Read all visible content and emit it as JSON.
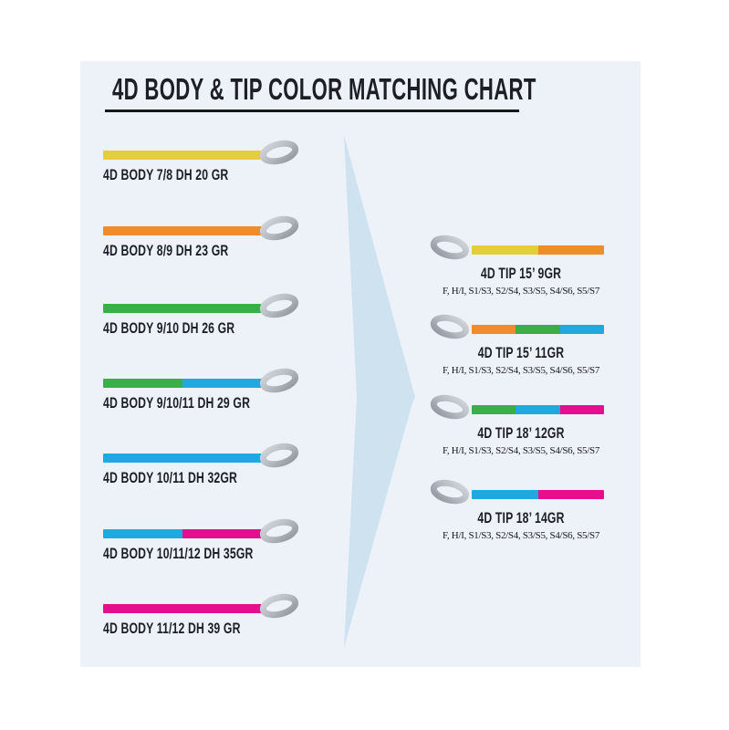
{
  "title": "4D BODY & TIP COLOR MATCHING CHART",
  "colors": {
    "yellow": "#e4ce3d",
    "orange": "#f08d2a",
    "green": "#3aae48",
    "blue": "#20a9de",
    "pink": "#e50f8e",
    "panel_background": "#edf1f8",
    "arrow": "#cfe2f0",
    "loop_gray": "#b2b7be",
    "text": "#1c1f25"
  },
  "bodies": [
    {
      "label": "4D BODY 7/8 DH 20 GR",
      "segments": [
        "yellow"
      ]
    },
    {
      "label": "4D BODY 8/9 DH 23 GR",
      "segments": [
        "orange"
      ]
    },
    {
      "label": "4D BODY 9/10 DH 26 GR",
      "segments": [
        "green"
      ]
    },
    {
      "label": "4D BODY 9/10/11 DH 29 GR",
      "segments": [
        "green",
        "blue"
      ]
    },
    {
      "label": "4D BODY 10/11 DH 32GR",
      "segments": [
        "blue"
      ]
    },
    {
      "label": "4D BODY 10/11/12 DH 35GR",
      "segments": [
        "blue",
        "pink"
      ]
    },
    {
      "label": "4D BODY 11/12 DH 39 GR",
      "segments": [
        "pink"
      ]
    }
  ],
  "tips": [
    {
      "label": "4D TIP 15’ 9GR",
      "sub": "F, H/I, S1/S3, S2/S4, S3/S5, S4/S6, S5/S7",
      "segments": [
        "yellow",
        "orange"
      ]
    },
    {
      "label": "4D TIP 15’ 11GR",
      "sub": "F, H/I, S1/S3, S2/S4, S3/S5, S4/S6, S5/S7",
      "segments": [
        "orange",
        "green",
        "blue"
      ]
    },
    {
      "label": "4D TIP 18’ 12GR",
      "sub": "F, H/I, S1/S3, S2/S4, S3/S5, S4/S6, S5/S7",
      "segments": [
        "green",
        "blue",
        "pink"
      ]
    },
    {
      "label": "4D TIP 18’ 14GR",
      "sub": "F, H/I, S1/S3, S2/S4, S3/S5, S4/S6, S5/S7",
      "segments": [
        "blue",
        "pink"
      ]
    }
  ]
}
